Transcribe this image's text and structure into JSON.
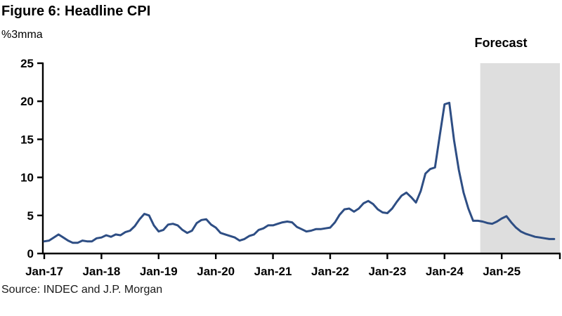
{
  "header": {
    "title": "Figure 6: Headline CPI",
    "units_label": "%3mma"
  },
  "forecast_label": "Forecast",
  "source": "Source: INDEC and J.P. Morgan",
  "colors": {
    "line": "#2e4e84",
    "forecast_shade": "#dedede",
    "axis": "#000000",
    "text": "#000000"
  },
  "chart_data": {
    "type": "line",
    "title": "Figure 6: Headline CPI",
    "ylabel": "%3mma",
    "xlabel": "",
    "ylim": [
      0,
      25
    ],
    "y_ticks": [
      0,
      5,
      10,
      15,
      20,
      25
    ],
    "x_tick_labels": [
      "Jan-17",
      "Jan-18",
      "Jan-19",
      "Jan-20",
      "Jan-21",
      "Jan-22",
      "Jan-23",
      "Jan-24",
      "Jan-25"
    ],
    "x_tick_month_indices": [
      0,
      12,
      24,
      36,
      48,
      60,
      72,
      84,
      96
    ],
    "x_start_month": "Jan-17",
    "x_end_month": "Dec-25",
    "grid": "off",
    "legend": "none",
    "annotations": [
      {
        "text": "Forecast",
        "position": "top-right-above-shaded-region"
      }
    ],
    "forecast_region": {
      "start_month": "Sep-24",
      "start_index": 92,
      "end": "right-edge-of-plot",
      "shade_color": "#dedede"
    },
    "series": [
      {
        "name": "Headline CPI (%3mma)",
        "values": [
          1.6,
          1.7,
          2.1,
          2.5,
          2.1,
          1.7,
          1.4,
          1.4,
          1.7,
          1.6,
          1.6,
          2.0,
          2.1,
          2.4,
          2.2,
          2.5,
          2.4,
          2.8,
          3.0,
          3.6,
          4.5,
          5.2,
          5.0,
          3.7,
          2.9,
          3.1,
          3.8,
          3.9,
          3.7,
          3.1,
          2.7,
          3.0,
          4.0,
          4.4,
          4.5,
          3.8,
          3.4,
          2.7,
          2.5,
          2.3,
          2.1,
          1.7,
          1.9,
          2.3,
          2.5,
          3.1,
          3.3,
          3.7,
          3.7,
          3.9,
          4.1,
          4.2,
          4.1,
          3.5,
          3.2,
          2.9,
          3.0,
          3.2,
          3.2,
          3.3,
          3.4,
          4.1,
          5.1,
          5.8,
          5.9,
          5.5,
          5.9,
          6.6,
          6.9,
          6.5,
          5.8,
          5.4,
          5.3,
          5.9,
          6.8,
          7.6,
          8.0,
          7.4,
          6.7,
          8.2,
          10.5,
          11.1,
          11.3,
          15.5,
          19.6,
          19.8,
          14.9,
          11.0,
          8.0,
          5.9,
          4.3,
          4.3,
          4.2,
          4.0,
          3.9,
          4.2,
          4.6,
          4.9,
          4.1,
          3.4,
          2.9,
          2.6,
          2.4,
          2.2,
          2.1,
          2.0,
          1.9,
          1.9
        ]
      }
    ]
  }
}
